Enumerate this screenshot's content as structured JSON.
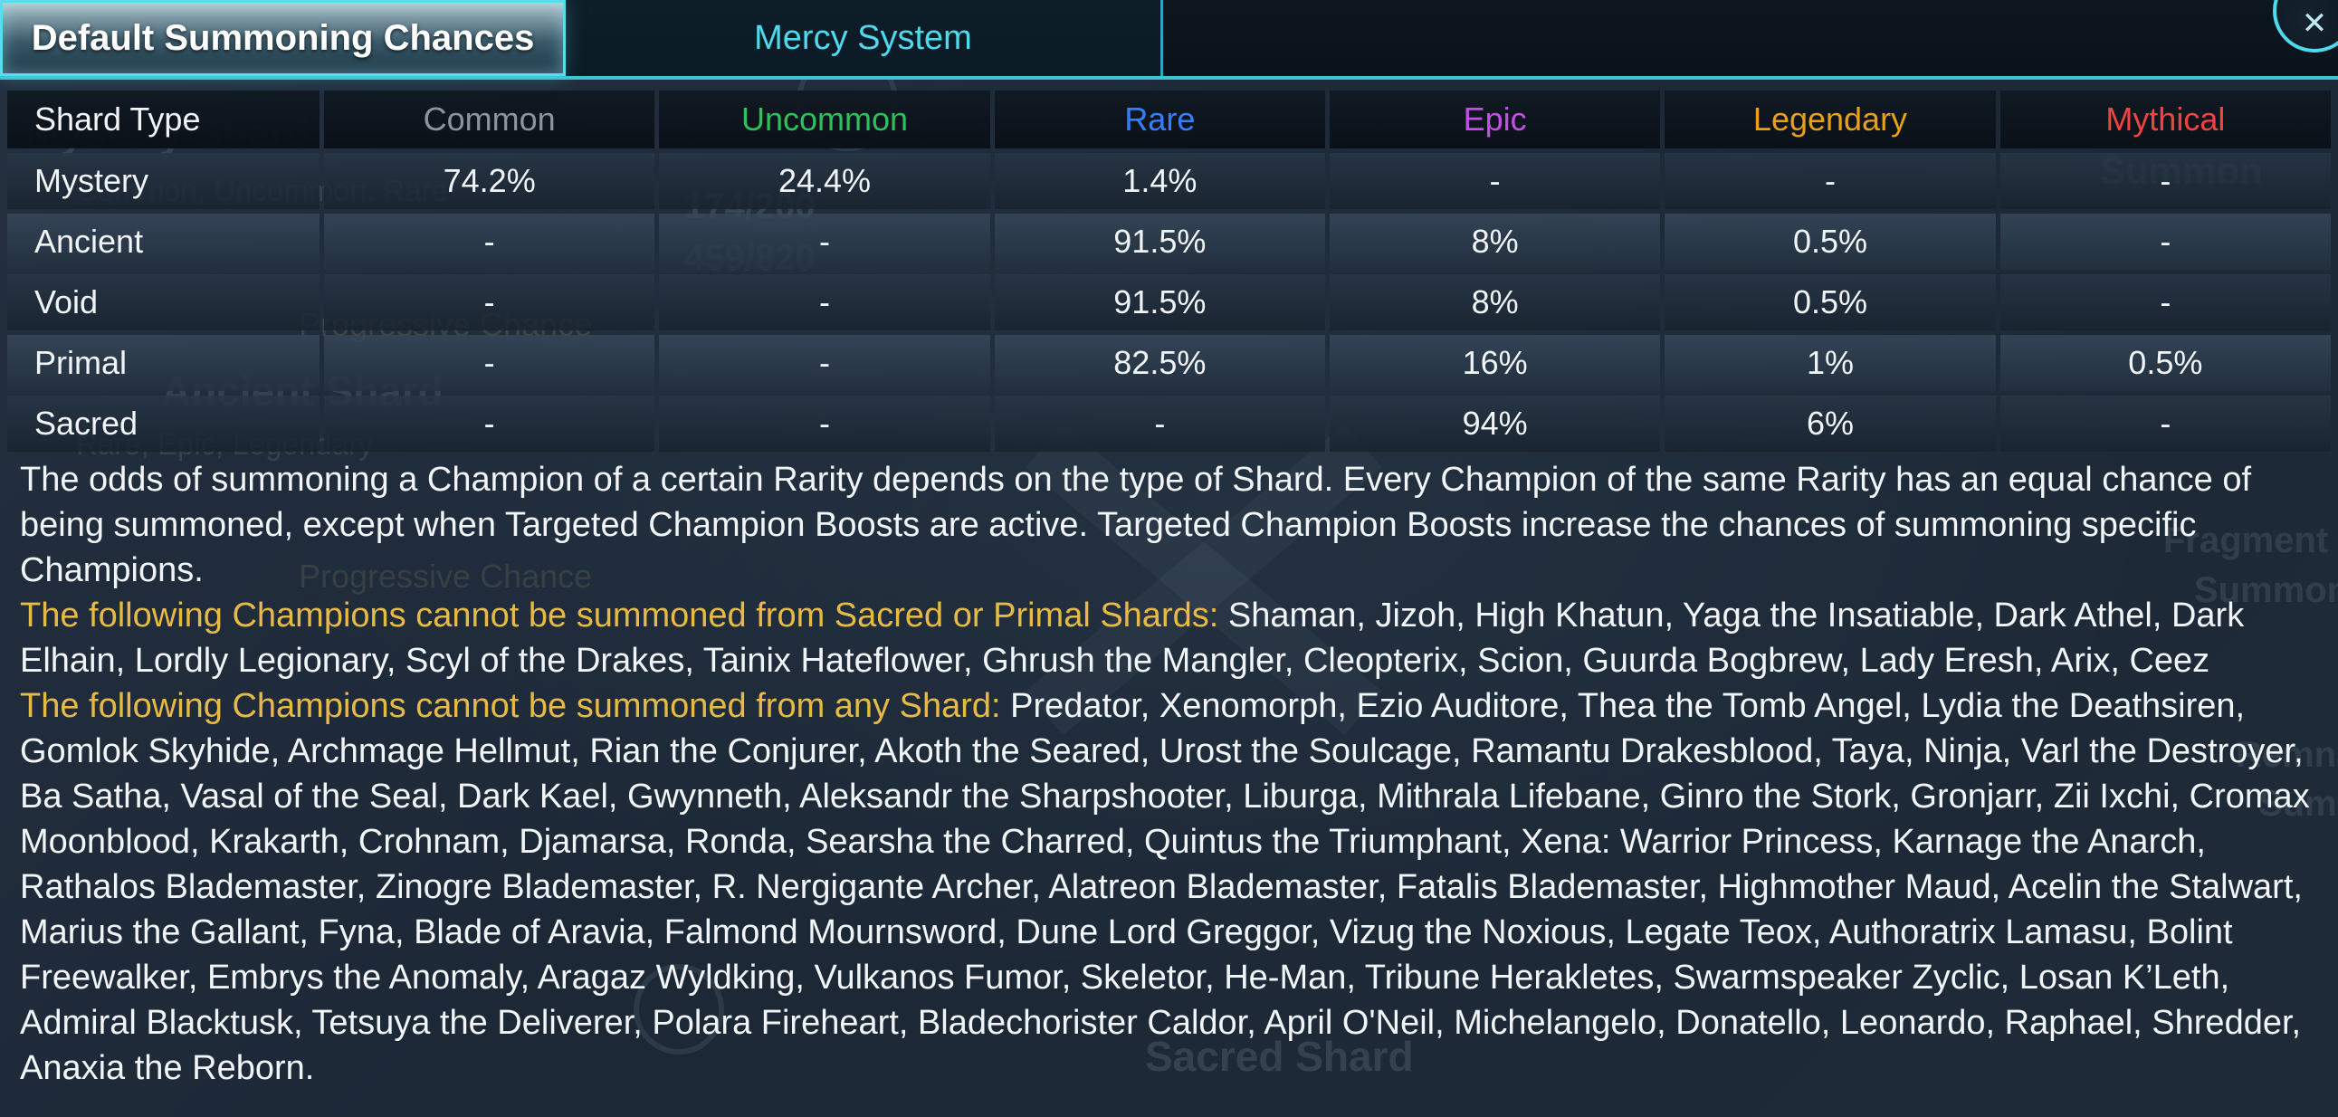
{
  "tabs": [
    {
      "label": "Default Summoning Chances",
      "active": true
    },
    {
      "label": "Mercy System",
      "active": false
    }
  ],
  "close": {
    "icon": "✕"
  },
  "colors": {
    "accent_cyan": "#4ed9ec",
    "gold_text": "#e7ba45",
    "body_text": "#f2f5f7"
  },
  "table": {
    "headers": [
      {
        "label": "Shard Type",
        "color": "#f2f5f7"
      },
      {
        "label": "Common",
        "color": "#8d949c"
      },
      {
        "label": "Uncommon",
        "color": "#2ec05a"
      },
      {
        "label": "Rare",
        "color": "#3380ff"
      },
      {
        "label": "Epic",
        "color": "#c44fe8"
      },
      {
        "label": "Legendary",
        "color": "#e8a019"
      },
      {
        "label": "Mythical",
        "color": "#f04441"
      }
    ],
    "rows": [
      {
        "shard": "Mystery",
        "values": [
          "74.2%",
          "24.4%",
          "1.4%",
          "-",
          "-",
          "-"
        ]
      },
      {
        "shard": "Ancient",
        "values": [
          "-",
          "-",
          "91.5%",
          "8%",
          "0.5%",
          "-"
        ]
      },
      {
        "shard": "Void",
        "values": [
          "-",
          "-",
          "91.5%",
          "8%",
          "0.5%",
          "-"
        ]
      },
      {
        "shard": "Primal",
        "values": [
          "-",
          "-",
          "82.5%",
          "16%",
          "1%",
          "0.5%"
        ]
      },
      {
        "shard": "Sacred",
        "values": [
          "-",
          "-",
          "-",
          "94%",
          "6%",
          "-"
        ]
      }
    ]
  },
  "description": {
    "intro": "The odds of summoning a Champion of a certain Rarity depends on the type of Shard. Every Champion of the same Rarity has an equal chance of being summoned, except when Targeted Champion Boosts are active. Targeted Champion Boosts increase the chances of summoning specific Champions.",
    "sacred_primal_intro": "The following Champions cannot be summoned from Sacred or Primal Shards:",
    "sacred_primal_list": " Shaman, Jizoh, High Khatun, Yaga the Insatiable, Dark Athel, Dark Elhain, Lordly Legionary, Scyl of the Drakes, Tainix Hateflower, Ghrush the Mangler, Cleopterix, Scion, Guurda Bogbrew, Lady Eresh, Arix, Ceez",
    "any_shard_intro": "The following Champions cannot be summoned from any Shard:",
    "any_shard_list": " Predator, Xenomorph, Ezio Auditore, Thea the Tomb Angel, Lydia the Deathsiren, Gomlok Skyhide, Archmage Hellmut, Rian the Conjurer, Akoth the Seared, Urost the Soulcage, Ramantu Drakesblood, Taya, Ninja, Varl the Destroyer, Ba Satha, Vasal of the Seal, Dark Kael, Gwynneth, Aleksandr the Sharpshooter, Liburga, Mithrala Lifebane, Ginro the Stork, Gronjarr, Zii Ixchi, Cromax Moonblood, Krakarth, Crohnam, Djamarsa, Ronda, Searsha the Charred, Quintus the Triumphant, Xena: Warrior Princess, Karnage the Anarch, Rathalos Blademaster, Zinogre Blademaster, R. Nergigante Archer, Alatreon Blademaster, Fatalis Blademaster, Highmother Maud, Acelin the Stalwart, Marius the Gallant, Fyna, Blade of Aravia, Falmond Mournsword, Dune Lord Greggor, Vizug the Noxious, Legate Teox, Authoratrix Lamasu, Bolint Freewalker, Embrys the Anomaly, Aragaz Wyldking, Vulkanos Fumor, Skeletor, He-Man, Tribune Herakletes, Swarmspeaker Zyclic, Losan K’Leth, Admiral Blacktusk, Tetsuya the Deliverer, Polara Fireheart, Bladechorister Caldor, April O'Neil, Michelangelo, Donatello, Leonardo, Raphael, Shredder, Anaxia the Reborn."
  },
  "background_ghost": {
    "items": [
      "Mystery Shard",
      "Common, Uncommon, Rare",
      "174/200",
      "459/820",
      "Progressive Chance",
      "Ancient Shard",
      "Rare, Epic, Legendary",
      "Progressive Chance",
      "Sacred Shard",
      "Summon",
      "Fragment",
      "Summon",
      "Remnant",
      "Summon"
    ]
  }
}
